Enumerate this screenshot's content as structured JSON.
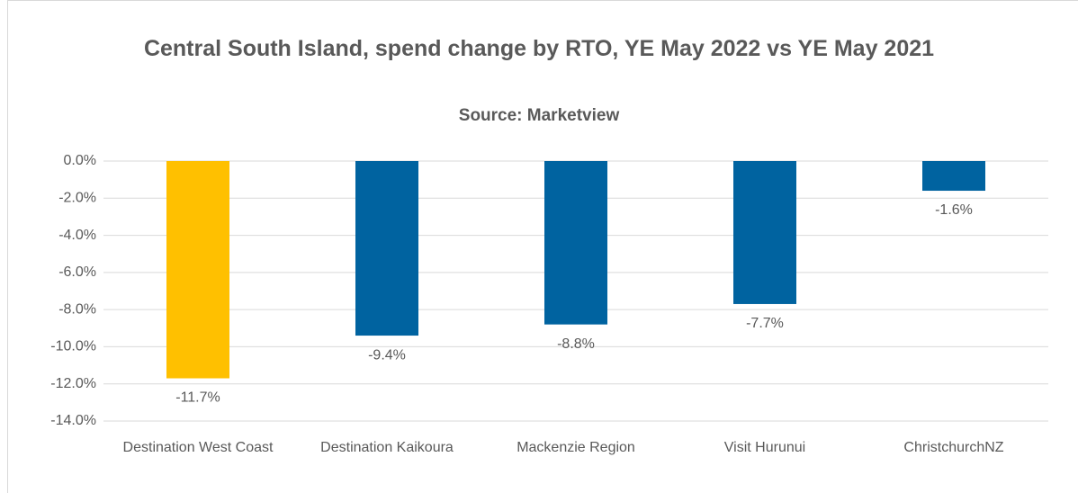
{
  "chart_data": {
    "type": "bar",
    "title": "Central South Island, spend change by RTO, YE May 2022 vs YE May 2021",
    "subtitle": "Source: Marketview",
    "categories": [
      "Destination West Coast",
      "Destination Kaikoura",
      "Mackenzie Region",
      "Visit Hurunui",
      "ChristchurchNZ"
    ],
    "values": [
      -11.7,
      -9.4,
      -8.8,
      -7.7,
      -1.6
    ],
    "value_labels": [
      "-11.7%",
      "-9.4%",
      "-8.8%",
      "-7.7%",
      "-1.6%"
    ],
    "colors": [
      "#ffc000",
      "#0063a0",
      "#0063a0",
      "#0063a0",
      "#0063a0"
    ],
    "ylim": [
      -14,
      0
    ],
    "yticks": [
      {
        "value": 0,
        "label": "0.0%"
      },
      {
        "value": -2,
        "label": "-2.0%"
      },
      {
        "value": -4,
        "label": "-4.0%"
      },
      {
        "value": -6,
        "label": "-6.0%"
      },
      {
        "value": -8,
        "label": "-8.0%"
      },
      {
        "value": -10,
        "label": "-10.0%"
      },
      {
        "value": -12,
        "label": "-12.0%"
      },
      {
        "value": -14,
        "label": "-14.0%"
      }
    ],
    "grid": true
  }
}
